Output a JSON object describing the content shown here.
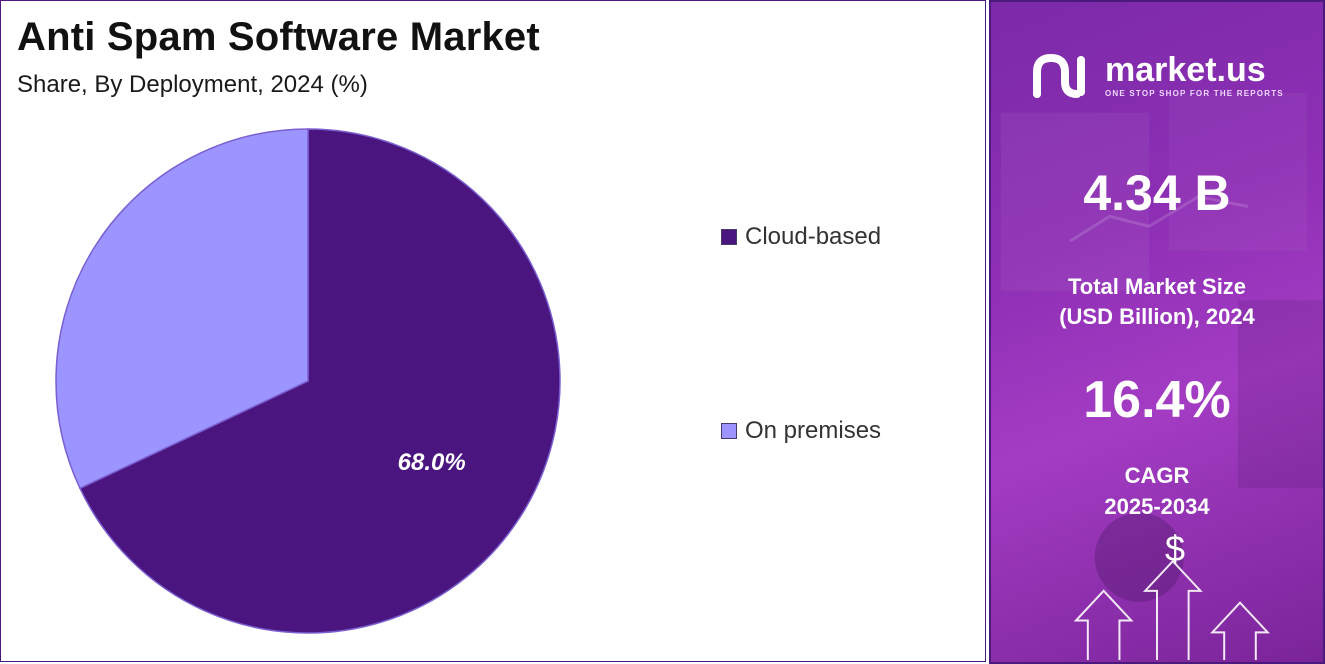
{
  "title": "Anti Spam Software Market",
  "subtitle": "Share, By Deployment, 2024 (%)",
  "chart_data": {
    "type": "pie",
    "categories": [
      "Cloud-based",
      "On premises"
    ],
    "values": [
      68.0,
      32.0
    ],
    "data_labels": [
      "68.0%",
      ""
    ],
    "colors": [
      "#4b1580",
      "#9c95ff"
    ],
    "legend": "right"
  },
  "legend": {
    "items": [
      {
        "label": "Cloud-based",
        "color": "#4b1580"
      },
      {
        "label": "On premises",
        "color": "#9c95ff"
      }
    ]
  },
  "brand": {
    "name": "market.us",
    "tagline": "ONE STOP SHOP FOR THE REPORTS"
  },
  "stats": {
    "market_size_value": "4.34 B",
    "market_size_label_line1": "Total Market Size",
    "market_size_label_line2": "(USD Billion), 2024",
    "cagr_value": "16.4%",
    "cagr_label_line1": "CAGR",
    "cagr_label_line2": "2025-2034",
    "currency_symbol": "$"
  }
}
